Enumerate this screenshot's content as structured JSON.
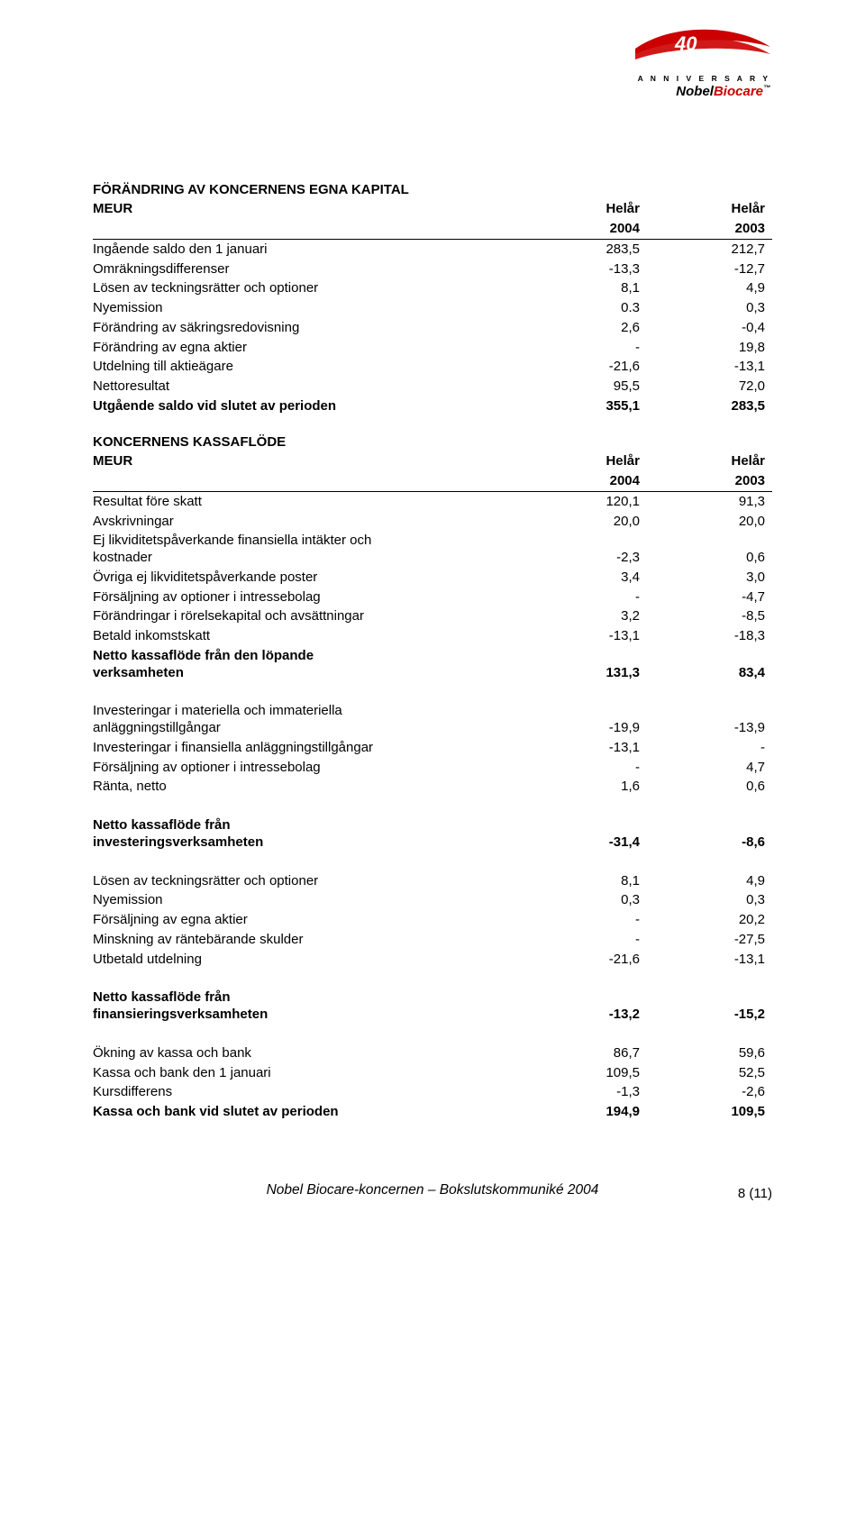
{
  "page": {
    "footer": "Nobel Biocare-koncernen – Bokslutskommuniké 2004",
    "page_number": "8 (11)"
  },
  "logo": {
    "anniversary": "A N N I V E R S A R Y",
    "brand_a": "Nobel",
    "brand_b": "Biocare",
    "tm": "™",
    "swoosh_color": "#cc0000",
    "number": "40"
  },
  "colors": {
    "text": "#000000",
    "bg": "#ffffff",
    "accent": "#cc0000",
    "rule": "#000000"
  },
  "typography": {
    "body_pt": 11,
    "footer_italic": true
  },
  "section1": {
    "title": "FÖRÄNDRING AV KONCERNENS EGNA KAPITAL",
    "row_head": {
      "label": "MEUR",
      "c1a": "Helår",
      "c2a": "Helår",
      "c1b": "2004",
      "c2b": "2003"
    },
    "rows": [
      {
        "label": "Ingående saldo den 1 januari",
        "c1": "283,5",
        "c2": "212,7"
      },
      {
        "label": "Omräkningsdifferenser",
        "c1": "-13,3",
        "c2": "-12,7"
      },
      {
        "label": "Lösen av teckningsrätter och optioner",
        "c1": "8,1",
        "c2": "4,9"
      },
      {
        "label": "Nyemission",
        "c1": "0.3",
        "c2": "0,3"
      },
      {
        "label": "Förändring av säkringsredovisning",
        "c1": "2,6",
        "c2": "-0,4"
      },
      {
        "label": "Förändring av egna aktier",
        "c1": "-",
        "c2": "19,8"
      },
      {
        "label": "Utdelning till aktieägare",
        "c1": "-21,6",
        "c2": "-13,1"
      },
      {
        "label": "Nettoresultat",
        "c1": "95,5",
        "c2": "72,0"
      }
    ],
    "total": {
      "label": "Utgående saldo vid slutet av perioden",
      "c1": "355,1",
      "c2": "283,5"
    }
  },
  "section2": {
    "title": "KONCERNENS KASSAFLÖDE",
    "row_head": {
      "label": "MEUR",
      "c1a": "Helår",
      "c2a": "Helår",
      "c1b": "2004",
      "c2b": "2003"
    },
    "block1": [
      {
        "label": "Resultat före skatt",
        "c1": "120,1",
        "c2": "91,3"
      },
      {
        "label": "Avskrivningar",
        "c1": "20,0",
        "c2": "20,0"
      },
      {
        "label_a": "Ej likviditetspåverkande finansiella intäkter och",
        "label_b": "kostnader",
        "c1": "-2,3",
        "c2": "0,6"
      },
      {
        "label": "Övriga ej likviditetspåverkande poster",
        "c1": "3,4",
        "c2": "3,0"
      },
      {
        "label": "Försäljning av optioner i intressebolag",
        "c1": "-",
        "c2": "-4,7"
      },
      {
        "label": "Förändringar i rörelsekapital och avsättningar",
        "c1": "3,2",
        "c2": "-8,5"
      },
      {
        "label": "Betald inkomstskatt",
        "c1": "-13,1",
        "c2": "-18,3"
      }
    ],
    "subtotal1": {
      "label_a": "Netto kassaflöde från den löpande",
      "label_b": "verksamheten",
      "c1": "131,3",
      "c2": "83,4"
    },
    "block2": [
      {
        "label_a": "Investeringar i materiella och immateriella",
        "label_b": "anläggningstillgångar",
        "c1": "-19,9",
        "c2": "-13,9"
      },
      {
        "label": "Investeringar i finansiella anläggningstillgångar",
        "c1": "-13,1",
        "c2": "-"
      },
      {
        "label": "Försäljning av optioner i intressebolag",
        "c1": "-",
        "c2": "4,7"
      },
      {
        "label": "Ränta, netto",
        "c1": "1,6",
        "c2": "0,6"
      }
    ],
    "subtotal2": {
      "label_a": "Netto kassaflöde från",
      "label_b": "investeringsverksamheten",
      "c1": "-31,4",
      "c2": "-8,6"
    },
    "block3": [
      {
        "label": "Lösen av teckningsrätter och optioner",
        "c1": "8,1",
        "c2": "4,9"
      },
      {
        "label": "Nyemission",
        "c1": "0,3",
        "c2": "0,3"
      },
      {
        "label": "Försäljning av egna aktier",
        "c1": "-",
        "c2": "20,2"
      },
      {
        "label": "Minskning av räntebärande skulder",
        "c1": "-",
        "c2": "-27,5"
      },
      {
        "label": "Utbetald utdelning",
        "c1": "-21,6",
        "c2": "-13,1"
      }
    ],
    "subtotal3": {
      "label_a": "Netto kassaflöde från",
      "label_b": "finansieringsverksamheten",
      "c1": "-13,2",
      "c2": "-15,2"
    },
    "block4": [
      {
        "label": "Ökning av kassa och bank",
        "c1": "86,7",
        "c2": "59,6"
      },
      {
        "label": "Kassa och bank den 1 januari",
        "c1": "109,5",
        "c2": "52,5"
      },
      {
        "label": "Kursdifferens",
        "c1": "-1,3",
        "c2": "-2,6"
      }
    ],
    "total": {
      "label": "Kassa och bank vid slutet av perioden",
      "c1": "194,9",
      "c2": "109,5"
    }
  }
}
